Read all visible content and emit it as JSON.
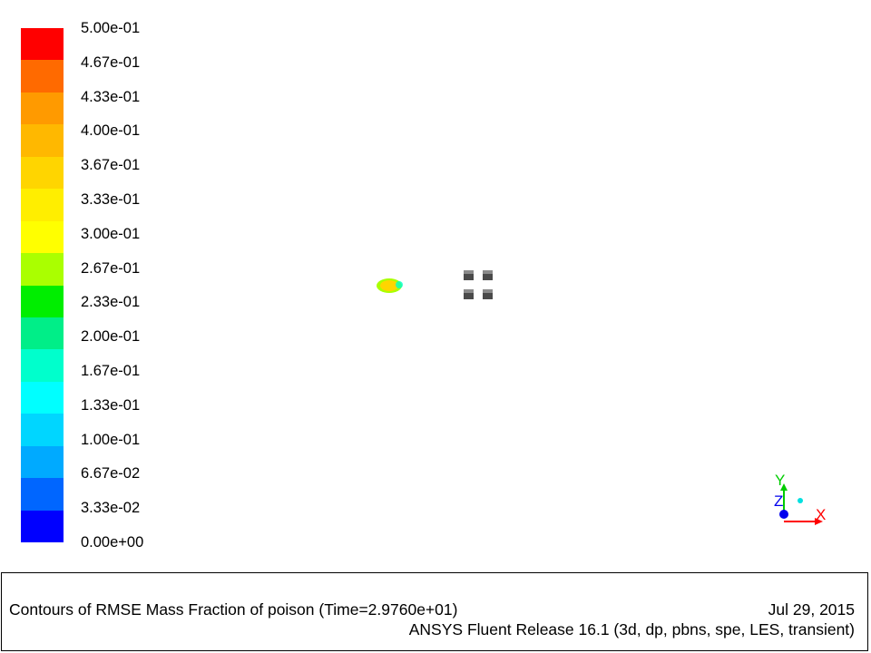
{
  "colorbar": {
    "labels": [
      "5.00e-01",
      "4.67e-01",
      "4.33e-01",
      "4.00e-01",
      "3.67e-01",
      "3.33e-01",
      "3.00e-01",
      "2.67e-01",
      "2.33e-01",
      "2.00e-01",
      "1.67e-01",
      "1.33e-01",
      "1.00e-01",
      "6.67e-02",
      "3.33e-02",
      "0.00e+00"
    ],
    "colors": [
      "#ff0000",
      "#ff6a00",
      "#ff9a00",
      "#ffb800",
      "#ffd500",
      "#ffee00",
      "#ffff00",
      "#aaff00",
      "#00ee00",
      "#00ee88",
      "#00ffcc",
      "#00ffff",
      "#00d6ff",
      "#00aaff",
      "#0066ff",
      "#0000ff"
    ]
  },
  "axes": {
    "x_label": "X",
    "y_label": "Y",
    "z_label": "Z"
  },
  "footer": {
    "title": "Contours of RMSE Mass Fraction of poison  (Time=2.9760e+01)",
    "date": "Jul 29, 2015",
    "release": "ANSYS Fluent Release 16.1 (3d, dp, pbns, spe, LES, transient)"
  }
}
